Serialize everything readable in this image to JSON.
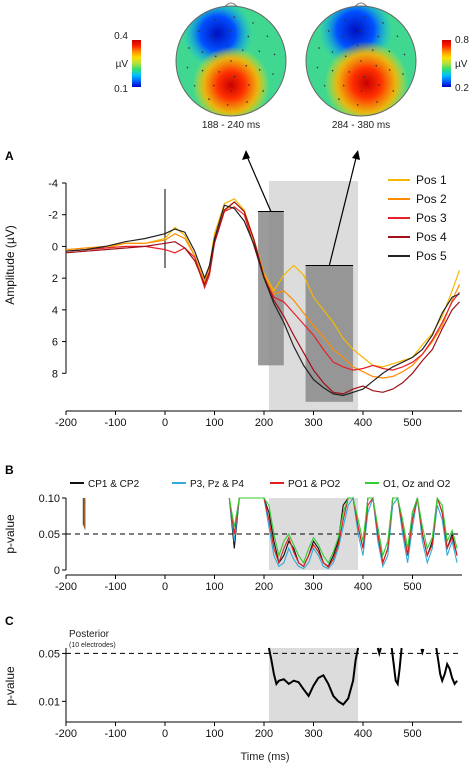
{
  "chart_data": [
    {
      "type": "scalp-map-pair",
      "maps": [
        {
          "window_label": "188 - 240 ms",
          "colorbar_unit": "µV",
          "colorbar_max": "0.4",
          "colorbar_min": "0.1",
          "colorbar_side": "left"
        },
        {
          "window_label": "284 - 380 ms",
          "colorbar_unit": "µV",
          "colorbar_max": "0.8",
          "colorbar_min": "0.2",
          "colorbar_side": "right"
        }
      ],
      "colorscale": [
        "#0000c8",
        "#0060ff",
        "#00c0ff",
        "#30e070",
        "#b0e040",
        "#ffe000",
        "#ff9000",
        "#ff2000",
        "#c80000"
      ]
    },
    {
      "type": "line",
      "panel_label": "A",
      "ylabel": "Amplitude (µV)",
      "xlim": [
        -200,
        600
      ],
      "ylim": [
        -4,
        10
      ],
      "y_inverted": true,
      "x_ticks": [
        "-200",
        "-100",
        "0",
        "100",
        "200",
        "300",
        "400",
        "500"
      ],
      "y_ticks": [
        "-4",
        "-2",
        "0",
        "2",
        "4",
        "6",
        "8"
      ],
      "highlight_window": [
        210,
        390
      ],
      "windows": [
        {
          "x": [
            188,
            240
          ],
          "y": [
            -2.2,
            7.5
          ]
        },
        {
          "x": [
            284,
            380
          ],
          "y": [
            1.2,
            9.8
          ]
        }
      ],
      "legend_position": "top-right",
      "x": [
        -200,
        -160,
        -120,
        -80,
        -40,
        0,
        20,
        40,
        60,
        80,
        90,
        100,
        120,
        140,
        160,
        180,
        200,
        220,
        240,
        260,
        280,
        300,
        320,
        340,
        360,
        380,
        400,
        420,
        440,
        460,
        480,
        500,
        520,
        540,
        560,
        580,
        595
      ],
      "series": [
        {
          "name": "Pos 1",
          "color": "#f5b800",
          "values": [
            0.3,
            0.2,
            0.1,
            -0.2,
            -0.2,
            -0.5,
            -1.2,
            -0.7,
            0.6,
            2.2,
            1.2,
            -0.8,
            -2.7,
            -3.0,
            -2.3,
            -0.4,
            1.7,
            2.8,
            1.8,
            1.2,
            1.8,
            3.2,
            4.0,
            4.8,
            5.8,
            6.5,
            7.0,
            7.5,
            7.6,
            7.4,
            7.2,
            7.0,
            6.2,
            5.5,
            4.4,
            2.8,
            1.5
          ]
        },
        {
          "name": "Pos 2",
          "color": "#ff8c00",
          "values": [
            0.2,
            0.1,
            0.0,
            -0.2,
            -0.2,
            -0.4,
            -0.8,
            -0.5,
            0.6,
            2.3,
            1.3,
            -0.4,
            -2.2,
            -2.8,
            -2.2,
            -0.3,
            1.8,
            3.0,
            2.8,
            3.4,
            4.2,
            5.0,
            5.7,
            6.5,
            7.0,
            7.6,
            7.9,
            8.2,
            8.3,
            8.2,
            7.9,
            7.5,
            6.8,
            6.0,
            5.0,
            3.4,
            2.4
          ]
        },
        {
          "name": "Pos 3",
          "color": "#e8202a",
          "values": [
            0.3,
            0.2,
            0.1,
            0.0,
            0.0,
            0.2,
            0.4,
            0.1,
            0.7,
            2.6,
            1.8,
            -0.2,
            -2.2,
            -2.5,
            -2.0,
            0.0,
            2.0,
            3.2,
            3.5,
            4.2,
            4.9,
            5.6,
            6.5,
            7.3,
            7.6,
            7.8,
            7.7,
            7.5,
            7.7,
            7.8,
            7.6,
            7.3,
            6.8,
            5.9,
            4.8,
            3.5,
            2.9
          ]
        },
        {
          "name": "Pos 4",
          "color": "#a01018",
          "values": [
            0.4,
            0.3,
            0.2,
            0.1,
            0.0,
            -0.2,
            -0.3,
            0.1,
            0.9,
            2.4,
            1.6,
            -0.3,
            -2.3,
            -2.8,
            -2.2,
            -0.4,
            1.9,
            3.4,
            4.4,
            5.6,
            6.7,
            7.8,
            8.6,
            9.2,
            9.3,
            9.0,
            8.8,
            9.1,
            9.2,
            9.0,
            8.6,
            8.0,
            7.2,
            6.5,
            5.2,
            4.0,
            3.5
          ]
        },
        {
          "name": "Pos 5",
          "color": "#222222",
          "values": [
            0.3,
            0.2,
            0.0,
            -0.3,
            -0.5,
            -0.8,
            -1.1,
            -0.9,
            0.3,
            2.0,
            1.2,
            -0.5,
            -2.6,
            -2.4,
            -1.6,
            -0.1,
            2.0,
            3.6,
            4.8,
            6.3,
            7.5,
            8.4,
            8.9,
            9.3,
            9.4,
            9.2,
            9.0,
            8.5,
            8.0,
            7.6,
            7.3,
            7.0,
            6.5,
            5.6,
            4.2,
            3.2,
            3.0
          ]
        }
      ]
    },
    {
      "type": "line",
      "panel_label": "B",
      "ylabel": "p-value",
      "xlim": [
        -200,
        600
      ],
      "ylim": [
        0,
        0.1
      ],
      "x_ticks": [
        "-200",
        "-100",
        "0",
        "100",
        "200",
        "300",
        "400",
        "500"
      ],
      "y_ticks": [
        "0",
        "0.05",
        "0.10"
      ],
      "threshold": 0.05,
      "highlight_window": [
        210,
        390
      ],
      "legend_position": "top",
      "x": [
        130,
        140,
        150,
        160,
        170,
        180,
        190,
        200,
        210,
        220,
        230,
        240,
        250,
        260,
        270,
        280,
        290,
        300,
        310,
        320,
        330,
        340,
        350,
        360,
        370,
        380,
        390,
        400,
        410,
        420,
        430,
        440,
        450,
        460,
        470,
        480,
        490,
        500,
        510,
        520,
        530,
        540,
        550,
        560,
        570,
        580,
        590
      ],
      "series": [
        {
          "name": "CP1 & CP2",
          "color": "#111111",
          "values": [
            0.1,
            0.03,
            0.1,
            0.1,
            0.1,
            0.1,
            0.1,
            0.1,
            0.08,
            0.04,
            0.01,
            0.02,
            0.04,
            0.03,
            0.01,
            0.005,
            0.02,
            0.04,
            0.03,
            0.01,
            0.005,
            0.02,
            0.04,
            0.09,
            0.1,
            0.1,
            0.06,
            0.03,
            0.1,
            0.1,
            0.05,
            0.01,
            0.03,
            0.1,
            0.1,
            0.06,
            0.02,
            0.08,
            0.1,
            0.05,
            0.02,
            0.04,
            0.1,
            0.08,
            0.03,
            0.05,
            0.02
          ]
        },
        {
          "name": "P3, Pz & P4",
          "color": "#33aadd",
          "values": [
            0.1,
            0.04,
            0.1,
            0.1,
            0.1,
            0.1,
            0.1,
            0.1,
            0.06,
            0.02,
            0.005,
            0.01,
            0.03,
            0.015,
            0.005,
            0.002,
            0.01,
            0.03,
            0.02,
            0.005,
            0.002,
            0.01,
            0.03,
            0.06,
            0.09,
            0.1,
            0.05,
            0.02,
            0.08,
            0.1,
            0.04,
            0.005,
            0.02,
            0.09,
            0.1,
            0.05,
            0.01,
            0.06,
            0.1,
            0.04,
            0.01,
            0.03,
            0.09,
            0.07,
            0.02,
            0.04,
            0.01
          ]
        },
        {
          "name": "PO1 & PO2",
          "color": "#e02020",
          "values": [
            0.1,
            0.05,
            0.1,
            0.1,
            0.1,
            0.1,
            0.1,
            0.1,
            0.07,
            0.03,
            0.01,
            0.03,
            0.045,
            0.025,
            0.01,
            0.005,
            0.02,
            0.035,
            0.025,
            0.01,
            0.004,
            0.015,
            0.035,
            0.07,
            0.1,
            0.1,
            0.06,
            0.03,
            0.09,
            0.1,
            0.05,
            0.01,
            0.03,
            0.1,
            0.1,
            0.06,
            0.02,
            0.07,
            0.1,
            0.05,
            0.02,
            0.035,
            0.1,
            0.08,
            0.03,
            0.045,
            0.02
          ]
        },
        {
          "name": "O1, Oz and O2",
          "color": "#33cc33",
          "values": [
            0.1,
            0.06,
            0.1,
            0.1,
            0.1,
            0.1,
            0.1,
            0.1,
            0.09,
            0.05,
            0.02,
            0.04,
            0.05,
            0.035,
            0.02,
            0.01,
            0.03,
            0.045,
            0.035,
            0.02,
            0.01,
            0.025,
            0.045,
            0.08,
            0.1,
            0.1,
            0.07,
            0.04,
            0.1,
            0.1,
            0.06,
            0.02,
            0.04,
            0.1,
            0.1,
            0.07,
            0.03,
            0.08,
            0.1,
            0.06,
            0.03,
            0.045,
            0.1,
            0.09,
            0.04,
            0.055,
            0.03
          ]
        }
      ]
    },
    {
      "type": "line",
      "panel_label": "C",
      "ylabel": "p-value",
      "xlabel": "Time (ms)",
      "xlim": [
        -200,
        600
      ],
      "ylim": [
        0.005,
        0.06
      ],
      "x_ticks": [
        "-200",
        "-100",
        "0",
        "100",
        "200",
        "300",
        "400",
        "500"
      ],
      "y_ticks": [
        "0.01",
        "0.05"
      ],
      "threshold": 0.05,
      "highlight_window": [
        210,
        390
      ],
      "annotation": "Posterior",
      "annotation_sub": "(10 electrodes)",
      "segments": [
        {
          "x": [
            210,
            215,
            220,
            225,
            230,
            240,
            250,
            260,
            270,
            280,
            290,
            300,
            310,
            320,
            330,
            340,
            350,
            360,
            370,
            380,
            385,
            390
          ],
          "values": [
            0.06,
            0.04,
            0.025,
            0.018,
            0.02,
            0.021,
            0.018,
            0.02,
            0.019,
            0.015,
            0.012,
            0.017,
            0.022,
            0.024,
            0.018,
            0.012,
            0.01,
            0.009,
            0.011,
            0.02,
            0.04,
            0.06
          ]
        },
        {
          "x": [
            430,
            433,
            436
          ],
          "values": [
            0.06,
            0.05,
            0.06
          ]
        },
        {
          "x": [
            458,
            462,
            466,
            470,
            474,
            478
          ],
          "values": [
            0.06,
            0.035,
            0.02,
            0.018,
            0.03,
            0.06
          ]
        },
        {
          "x": [
            518,
            520,
            522
          ],
          "values": [
            0.058,
            0.052,
            0.058
          ]
        },
        {
          "x": [
            548,
            552,
            556,
            560,
            565,
            570,
            575,
            580,
            585,
            590
          ],
          "values": [
            0.06,
            0.04,
            0.025,
            0.02,
            0.025,
            0.035,
            0.03,
            0.022,
            0.018,
            0.02
          ]
        }
      ]
    }
  ]
}
